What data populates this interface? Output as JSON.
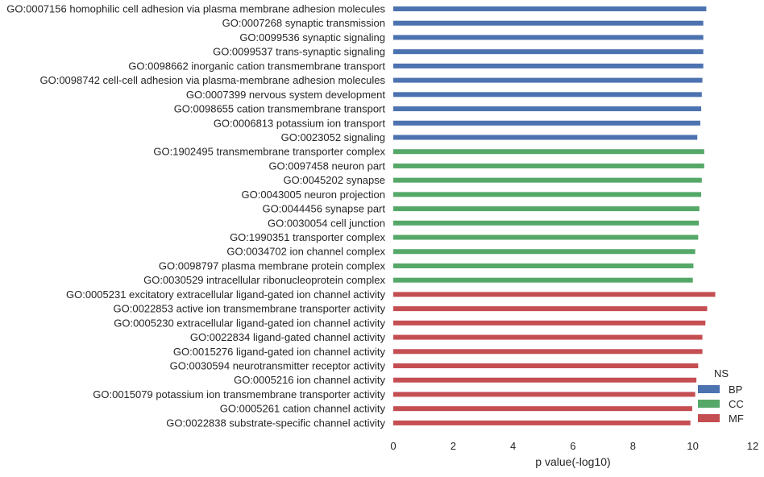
{
  "chart_data": {
    "type": "bar",
    "orientation": "horizontal",
    "xlabel": "p value(-log10)",
    "ylabel": "",
    "xlim": [
      0,
      12
    ],
    "xticks": [
      0,
      2,
      4,
      6,
      8,
      10,
      12
    ],
    "grid": false,
    "legend": {
      "title": "NS",
      "placement": "lower-right",
      "entries": [
        {
          "name": "BP",
          "color": "#4c72b0"
        },
        {
          "name": "CC",
          "color": "#55a868"
        },
        {
          "name": "MF",
          "color": "#c44e52"
        }
      ]
    },
    "categories": [
      "GO:0007156 homophilic cell adhesion via plasma membrane adhesion molecules",
      "GO:0007268 synaptic transmission",
      "GO:0099536 synaptic signaling",
      "GO:0099537 trans-synaptic signaling",
      "GO:0098662 inorganic cation transmembrane transport",
      "GO:0098742 cell-cell adhesion via plasma-membrane adhesion molecules",
      "GO:0007399 nervous system development",
      "GO:0098655 cation transmembrane transport",
      "GO:0006813 potassium ion transport",
      "GO:0023052 signaling",
      "GO:1902495 transmembrane transporter complex",
      "GO:0097458 neuron part",
      "GO:0045202 synapse",
      "GO:0043005 neuron projection",
      "GO:0044456 synapse part",
      "GO:0030054 cell junction",
      "GO:1990351 transporter complex",
      "GO:0034702 ion channel complex",
      "GO:0098797 plasma membrane protein complex",
      "GO:0030529 intracellular ribonucleoprotein complex",
      "GO:0005231 excitatory extracellular ligand-gated ion channel activity",
      "GO:0022853 active ion transmembrane transporter activity",
      "GO:0005230 extracellular ligand-gated ion channel activity",
      "GO:0022834 ligand-gated channel activity",
      "GO:0015276 ligand-gated ion channel activity",
      "GO:0030594 neurotransmitter receptor activity",
      "GO:0005216 ion channel activity",
      "GO:0015079 potassium ion transmembrane transporter activity",
      "GO:0005261 cation channel activity",
      "GO:0022838 substrate-specific channel activity"
    ],
    "values": [
      10.45,
      10.35,
      10.35,
      10.35,
      10.35,
      10.32,
      10.3,
      10.28,
      10.25,
      10.15,
      10.38,
      10.38,
      10.3,
      10.28,
      10.22,
      10.2,
      10.18,
      10.08,
      10.02,
      10.0,
      10.75,
      10.48,
      10.42,
      10.32,
      10.32,
      10.18,
      10.12,
      10.08,
      9.98,
      9.92
    ],
    "groups": [
      "BP",
      "BP",
      "BP",
      "BP",
      "BP",
      "BP",
      "BP",
      "BP",
      "BP",
      "BP",
      "CC",
      "CC",
      "CC",
      "CC",
      "CC",
      "CC",
      "CC",
      "CC",
      "CC",
      "CC",
      "MF",
      "MF",
      "MF",
      "MF",
      "MF",
      "MF",
      "MF",
      "MF",
      "MF",
      "MF"
    ]
  }
}
